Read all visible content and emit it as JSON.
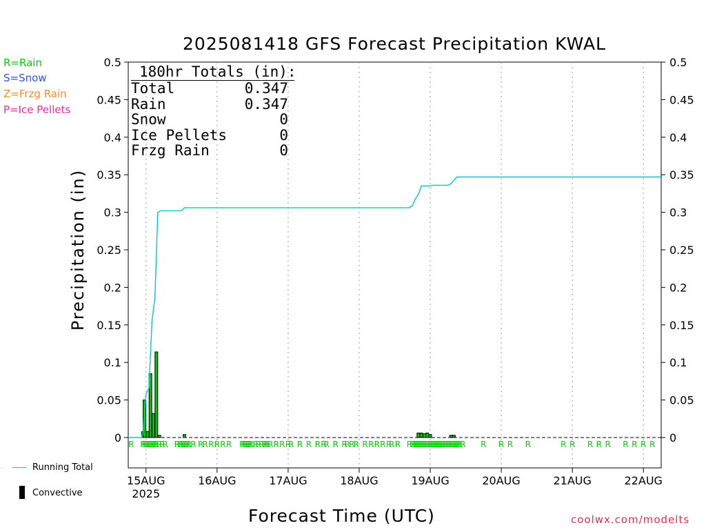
{
  "chart_data": {
    "type": "bar",
    "title": "2025081418 GFS Forecast Precipitation KWAL",
    "xlabel": "Forecast Time (UTC)",
    "ylabel": "Precipitation (in)",
    "ylim": [
      0,
      0.5
    ],
    "y_ticks": [
      "0",
      "0.05",
      "0.1",
      "0.15",
      "0.2",
      "0.25",
      "0.3",
      "0.35",
      "0.4",
      "0.45",
      "0.5"
    ],
    "x_unit": "hours since 2025-08-14 18Z",
    "xlim": [
      0,
      180
    ],
    "x_ticks": [
      {
        "label": "15AUG",
        "sub": "2025",
        "hour": 6
      },
      {
        "label": "16AUG",
        "hour": 30
      },
      {
        "label": "17AUG",
        "hour": 54
      },
      {
        "label": "18AUG",
        "hour": 78
      },
      {
        "label": "19AUG",
        "hour": 102
      },
      {
        "label": "20AUG",
        "hour": 126
      },
      {
        "label": "21AUG",
        "hour": 150
      },
      {
        "label": "22AUG",
        "hour": 174
      }
    ],
    "grid": "vertical dotted at day boundaries",
    "legend_keys": [
      {
        "text": "R=Rain",
        "color": "#00d000"
      },
      {
        "text": "S=Snow",
        "color": "#3050e8"
      },
      {
        "text": "Z=Frzg Rain",
        "color": "#f08c28"
      },
      {
        "text": "P=Ice Pellets",
        "color": "#f028a0"
      }
    ],
    "series": [
      {
        "name": "Running Total",
        "kind": "line",
        "color": "#00c8c8",
        "points": [
          [
            0,
            0
          ],
          [
            4.5,
            0
          ],
          [
            5,
            0.008
          ],
          [
            6,
            0.058
          ],
          [
            7,
            0.066
          ],
          [
            8,
            0.155
          ],
          [
            9,
            0.186
          ],
          [
            10,
            0.3
          ],
          [
            11,
            0.302
          ],
          [
            18,
            0.302
          ],
          [
            19,
            0.306
          ],
          [
            95,
            0.306
          ],
          [
            96,
            0.309
          ],
          [
            97,
            0.318
          ],
          [
            98,
            0.324
          ],
          [
            99,
            0.335
          ],
          [
            102,
            0.335
          ],
          [
            103,
            0.336
          ],
          [
            108,
            0.336
          ],
          [
            109,
            0.338
          ],
          [
            111,
            0.347
          ],
          [
            180,
            0.347
          ]
        ]
      },
      {
        "name": "Convective",
        "kind": "bar",
        "color": "#000000",
        "points": [
          [
            5,
            0.008
          ],
          [
            5.5,
            0.05
          ],
          [
            6.5,
            0.008
          ],
          [
            7.5,
            0.085
          ],
          [
            8.5,
            0.032
          ],
          [
            9.5,
            0.114
          ],
          [
            10.5,
            0.003
          ],
          [
            19,
            0.004
          ],
          [
            98,
            0.006
          ],
          [
            99,
            0.006
          ],
          [
            100,
            0.005
          ],
          [
            101,
            0.006
          ],
          [
            102,
            0.004
          ],
          [
            109,
            0.003
          ],
          [
            110,
            0.003
          ]
        ]
      }
    ],
    "rain_markers_hours": [
      1,
      5,
      5.5,
      6,
      6.5,
      7,
      7.5,
      8,
      8.5,
      9,
      9.5,
      10.5,
      11.5,
      12.5,
      16.5,
      17.5,
      18,
      18.5,
      19,
      19.5,
      20,
      20.5,
      22,
      24.5,
      26,
      28,
      30,
      32,
      34,
      38.5,
      39,
      39.5,
      40,
      40.5,
      41,
      41.5,
      43,
      44,
      45,
      46,
      46.5,
      47,
      48,
      50,
      52,
      54,
      55,
      58,
      61,
      64,
      66,
      67,
      70,
      73,
      74,
      75.5,
      77,
      80,
      82,
      84,
      86,
      88,
      89,
      91,
      95,
      96,
      96.5,
      97,
      97.5,
      98,
      98.5,
      99,
      99.5,
      100,
      100.5,
      101,
      101.5,
      102,
      102.5,
      103,
      103.5,
      104,
      104.5,
      105,
      105.5,
      106,
      106.5,
      107,
      107.5,
      108,
      108.5,
      109,
      109.5,
      110,
      110.5,
      111,
      111.5,
      112,
      113,
      120,
      126,
      129,
      135,
      147,
      150,
      156,
      159,
      162,
      168,
      171,
      174,
      177
    ]
  },
  "totals": {
    "header": "180hr Totals (in):",
    "rows": [
      {
        "label": "Total",
        "value": "0.347"
      },
      {
        "label": "Rain",
        "value": "0.347"
      },
      {
        "label": "Snow",
        "value": "0"
      },
      {
        "label": "Ice Pellets",
        "value": "0"
      },
      {
        "label": "Frzg Rain",
        "value": "0"
      }
    ]
  },
  "bottom_legend": {
    "running_total": "Running Total",
    "convective": "Convective"
  },
  "credit": "coolwx.com/modelts",
  "colors": {
    "running_total": "#00c8c8",
    "rain": "#00d000",
    "convective_edge": "#000000",
    "credit": "#e0304a"
  }
}
